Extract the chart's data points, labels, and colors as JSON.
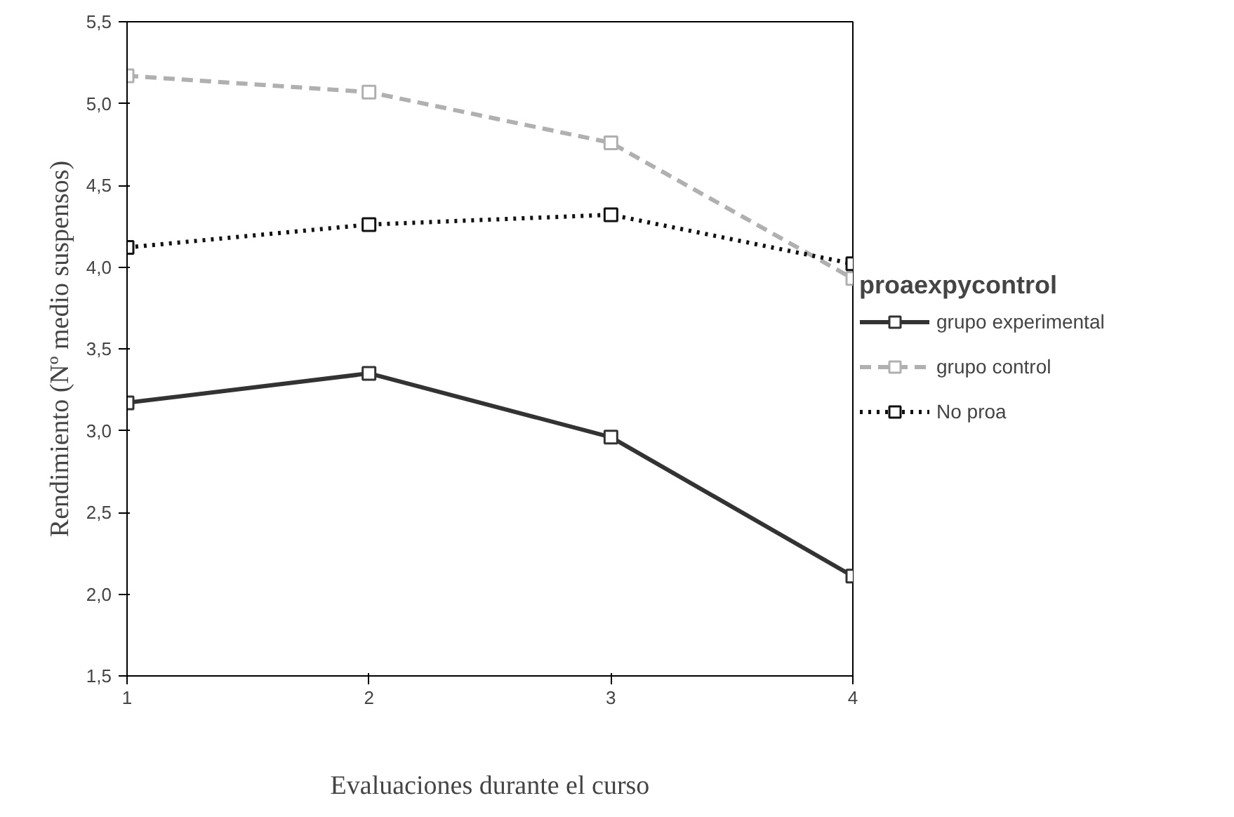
{
  "chart_data": {
    "type": "line",
    "xlabel": "Evaluaciones durante el curso",
    "ylabel": "Rendimiento (Nº medio suspensos)",
    "legend_title": "proaexpycontrol",
    "x": [
      1,
      2,
      3,
      4
    ],
    "xlim": [
      1,
      4
    ],
    "xticks": [
      1,
      2,
      3,
      4
    ],
    "ylim": [
      1.5,
      5.5
    ],
    "yticks": [
      {
        "value": 1.5,
        "label": "1,5"
      },
      {
        "value": 2.0,
        "label": "2,0"
      },
      {
        "value": 2.5,
        "label": "2,5"
      },
      {
        "value": 3.0,
        "label": "3,0"
      },
      {
        "value": 3.5,
        "label": "3,5"
      },
      {
        "value": 4.0,
        "label": "4,0"
      },
      {
        "value": 4.5,
        "label": "4,5"
      },
      {
        "value": 5.0,
        "label": "5,0"
      },
      {
        "value": 5.5,
        "label": "5,5"
      }
    ],
    "grid": false,
    "legend": "right",
    "marker": "square",
    "series": [
      {
        "name": "grupo experimental",
        "color": "#333333",
        "line_style": "solid",
        "values": [
          3.17,
          3.35,
          2.96,
          2.11
        ]
      },
      {
        "name": "grupo control",
        "color": "#b0b0b0",
        "line_style": "dashed",
        "values": [
          5.17,
          5.07,
          4.76,
          3.93
        ]
      },
      {
        "name": "No proa",
        "color": "#111111",
        "line_style": "dotted",
        "values": [
          4.12,
          4.26,
          4.32,
          4.02
        ]
      }
    ]
  }
}
